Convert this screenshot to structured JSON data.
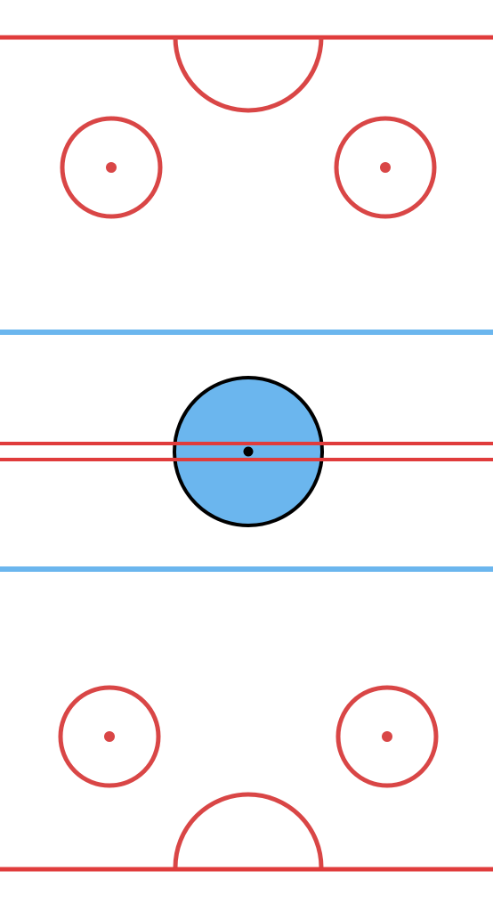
{
  "colors": {
    "background": "#ffffff",
    "goal_line": "#e03c3c",
    "crease": "#d94646",
    "faceoff": "#d94646",
    "blue_line": "#6bb6ee",
    "center_line": "#e03c3c",
    "center_circle_fill": "#6bb6ee",
    "center_circle_stroke": "#000000",
    "center_dot": "#000000"
  },
  "elements": [
    "top-goal-line",
    "top-goal-crease",
    "top-left-faceoff-circle",
    "top-right-faceoff-circle",
    "top-blue-line",
    "center-red-lines",
    "center-ice-circle",
    "bottom-blue-line",
    "bottom-left-faceoff-circle",
    "bottom-right-faceoff-circle",
    "bottom-goal-crease",
    "bottom-goal-line"
  ]
}
